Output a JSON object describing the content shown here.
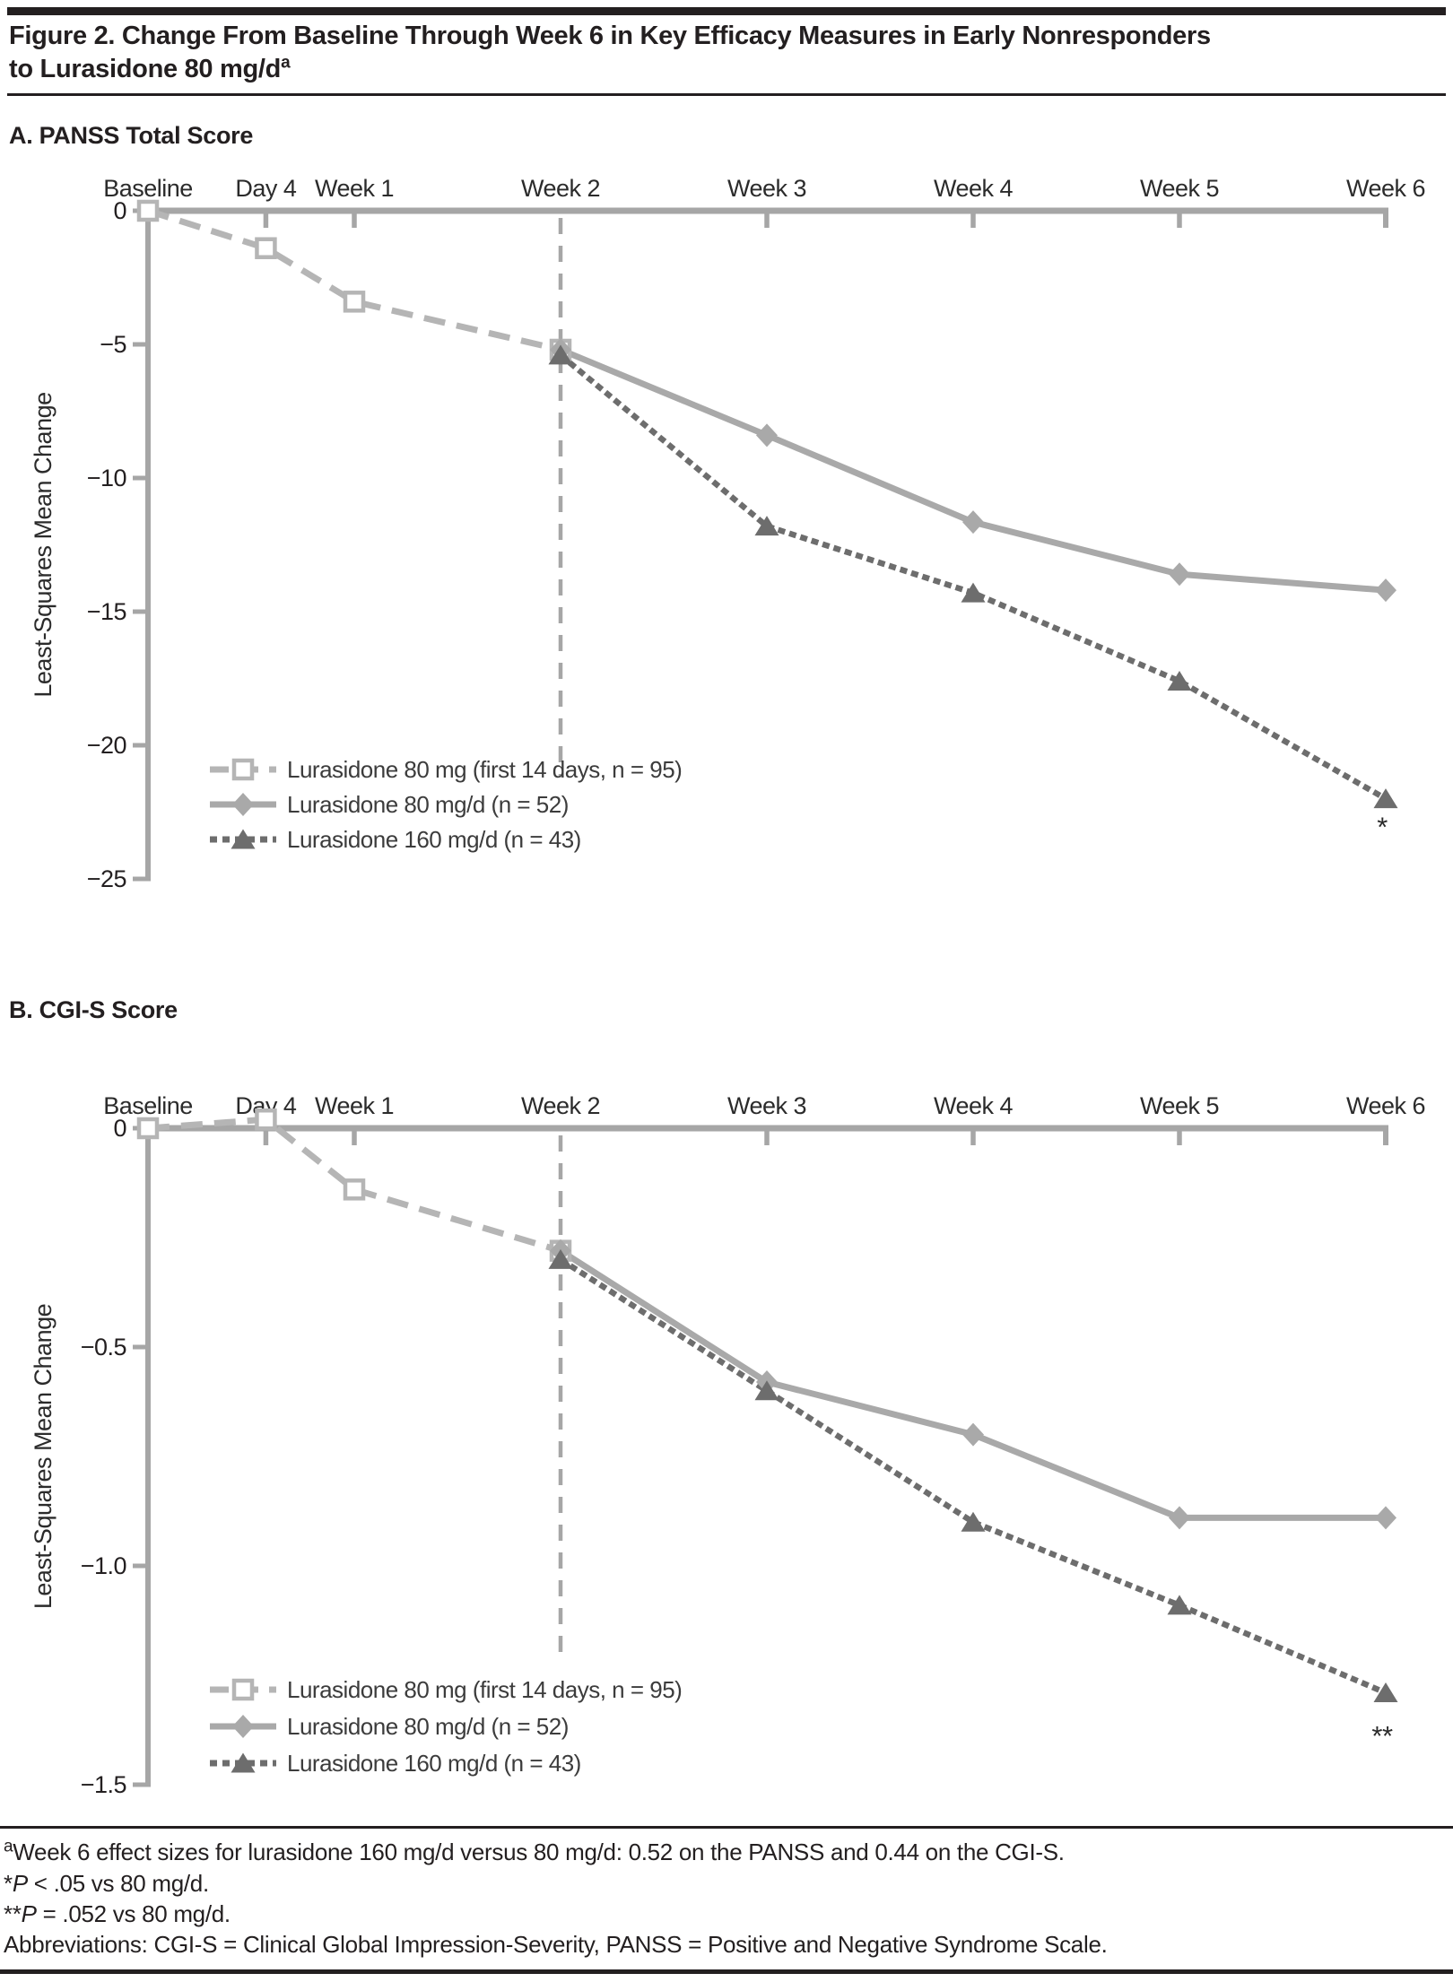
{
  "header": {
    "title_line1": "Figure 2. Change From Baseline Through Week 6 in Key Efficacy Measures in Early Nonresponders",
    "title_line2": "to Lurasidone 80 mg/d",
    "title_superscript": "a"
  },
  "colors": {
    "axis": "#a6a6a6",
    "label": "#2b2b2b",
    "tick_label": "#231f20",
    "legend_text": "#3c3c3c",
    "series_first14": "#b5b5b5",
    "series_80": "#a9a9a9",
    "series_160": "#6d6d6d",
    "reference_line": "#a6a6a6",
    "annotation": "#2b2b2b"
  },
  "chart_data": [
    {
      "panel": "A",
      "title": "A. PANSS Total Score",
      "type": "line",
      "x_unit": "days",
      "ylabel": "Least-Squares Mean Change",
      "ylim": [
        -25,
        0
      ],
      "grid": false,
      "legend_position": "lower-left-inside",
      "x_ticks": [
        {
          "day": 0,
          "label": "Baseline"
        },
        {
          "day": 4,
          "label": "Day 4"
        },
        {
          "day": 7,
          "label": "Week 1"
        },
        {
          "day": 14,
          "label": "Week 2"
        },
        {
          "day": 21,
          "label": "Week 3"
        },
        {
          "day": 28,
          "label": "Week 4"
        },
        {
          "day": 35,
          "label": "Week 5"
        },
        {
          "day": 42,
          "label": "Week 6"
        }
      ],
      "y_ticks": [
        {
          "value": 0,
          "label": "0"
        },
        {
          "value": -5,
          "label": "−5"
        },
        {
          "value": -10,
          "label": "−10"
        },
        {
          "value": -15,
          "label": "−15"
        },
        {
          "value": -20,
          "label": "−20"
        },
        {
          "value": -25,
          "label": "−25"
        }
      ],
      "reference_line": {
        "day": 14,
        "from_value": 0,
        "to_value": -21.2,
        "style": "dashed"
      },
      "series": [
        {
          "name": "Lurasidone 80 mg (first 14 days, n = 95)",
          "id": "lurasidone-80mg-first-14-days",
          "color_key": "series_first14",
          "line": "dashed",
          "marker": "open-square",
          "points": [
            {
              "day": 0,
              "value": 0
            },
            {
              "day": 4,
              "value": -1.4
            },
            {
              "day": 7,
              "value": -3.4
            },
            {
              "day": 14,
              "value": -5.2
            }
          ]
        },
        {
          "name": "Lurasidone 80 mg/d (n = 52)",
          "id": "lurasidone-80mgd",
          "color_key": "series_80",
          "line": "solid",
          "marker": "diamond",
          "points": [
            {
              "day": 14,
              "value": -5.2
            },
            {
              "day": 21,
              "value": -8.4
            },
            {
              "day": 28,
              "value": -11.65
            },
            {
              "day": 35,
              "value": -13.6
            },
            {
              "day": 42,
              "value": -14.2
            }
          ]
        },
        {
          "name": "Lurasidone 160 mg/d (n = 43)",
          "id": "lurasidone-160mgd",
          "color_key": "series_160",
          "line": "dotted",
          "marker": "triangle",
          "points": [
            {
              "day": 14,
              "value": -5.4
            },
            {
              "day": 21,
              "value": -11.8
            },
            {
              "day": 28,
              "value": -14.3
            },
            {
              "day": 35,
              "value": -17.6
            },
            {
              "day": 42,
              "value": -22.0
            }
          ]
        }
      ],
      "annotations": [
        {
          "text": "*",
          "day": 42,
          "value": -23.4
        }
      ]
    },
    {
      "panel": "B",
      "title": "B. CGI-S Score",
      "type": "line",
      "x_unit": "days",
      "ylabel": "Least-Squares Mean Change",
      "ylim": [
        -1.5,
        0
      ],
      "grid": false,
      "legend_position": "lower-left-inside",
      "x_ticks": [
        {
          "day": 0,
          "label": "Baseline"
        },
        {
          "day": 4,
          "label": "Day 4"
        },
        {
          "day": 7,
          "label": "Week 1"
        },
        {
          "day": 14,
          "label": "Week 2"
        },
        {
          "day": 21,
          "label": "Week 3"
        },
        {
          "day": 28,
          "label": "Week 4"
        },
        {
          "day": 35,
          "label": "Week 5"
        },
        {
          "day": 42,
          "label": "Week 6"
        }
      ],
      "y_ticks": [
        {
          "value": 0,
          "label": "0"
        },
        {
          "value": -0.5,
          "label": "−0.5"
        },
        {
          "value": -1.0,
          "label": "−1.0"
        },
        {
          "value": -1.5,
          "label": "−1.5"
        }
      ],
      "reference_line": {
        "day": 14,
        "from_value": 0,
        "to_value": -1.2,
        "style": "dashed"
      },
      "series": [
        {
          "name": "Lurasidone 80 mg (first 14 days, n = 95)",
          "id": "lurasidone-80mg-first-14-days",
          "color_key": "series_first14",
          "line": "dashed",
          "marker": "open-square",
          "points": [
            {
              "day": 0,
              "value": 0
            },
            {
              "day": 4,
              "value": 0.02
            },
            {
              "day": 7,
              "value": -0.14
            },
            {
              "day": 14,
              "value": -0.28
            }
          ]
        },
        {
          "name": "Lurasidone 80 mg/d (n = 52)",
          "id": "lurasidone-80mgd",
          "color_key": "series_80",
          "line": "solid",
          "marker": "diamond",
          "points": [
            {
              "day": 14,
              "value": -0.28
            },
            {
              "day": 21,
              "value": -0.58
            },
            {
              "day": 28,
              "value": -0.7
            },
            {
              "day": 35,
              "value": -0.89
            },
            {
              "day": 42,
              "value": -0.89
            }
          ]
        },
        {
          "name": "Lurasidone 160 mg/d (n = 43)",
          "id": "lurasidone-160mgd",
          "color_key": "series_160",
          "line": "dotted",
          "marker": "triangle",
          "points": [
            {
              "day": 14,
              "value": -0.3
            },
            {
              "day": 21,
              "value": -0.6
            },
            {
              "day": 28,
              "value": -0.9
            },
            {
              "day": 35,
              "value": -1.09
            },
            {
              "day": 42,
              "value": -1.29
            }
          ]
        }
      ],
      "annotations": [
        {
          "text": "**",
          "day": 42,
          "value": -1.41
        }
      ]
    }
  ],
  "footnotes": {
    "line1_superscript": "a",
    "line1_text": "Week 6 effect sizes for lurasidone 160 mg/d versus 80 mg/d: 0.52 on the PANSS and 0.44 on the CGI-S.",
    "line2_marker": "*",
    "line2_p": "P",
    "line2_rest": " < .05 vs 80 mg/d.",
    "line3_marker": "**",
    "line3_p": "P",
    "line3_rest": " = .052 vs 80 mg/d.",
    "line4": "Abbreviations: CGI-S = Clinical Global Impression-Severity, PANSS = Positive and Negative Syndrome Scale."
  }
}
